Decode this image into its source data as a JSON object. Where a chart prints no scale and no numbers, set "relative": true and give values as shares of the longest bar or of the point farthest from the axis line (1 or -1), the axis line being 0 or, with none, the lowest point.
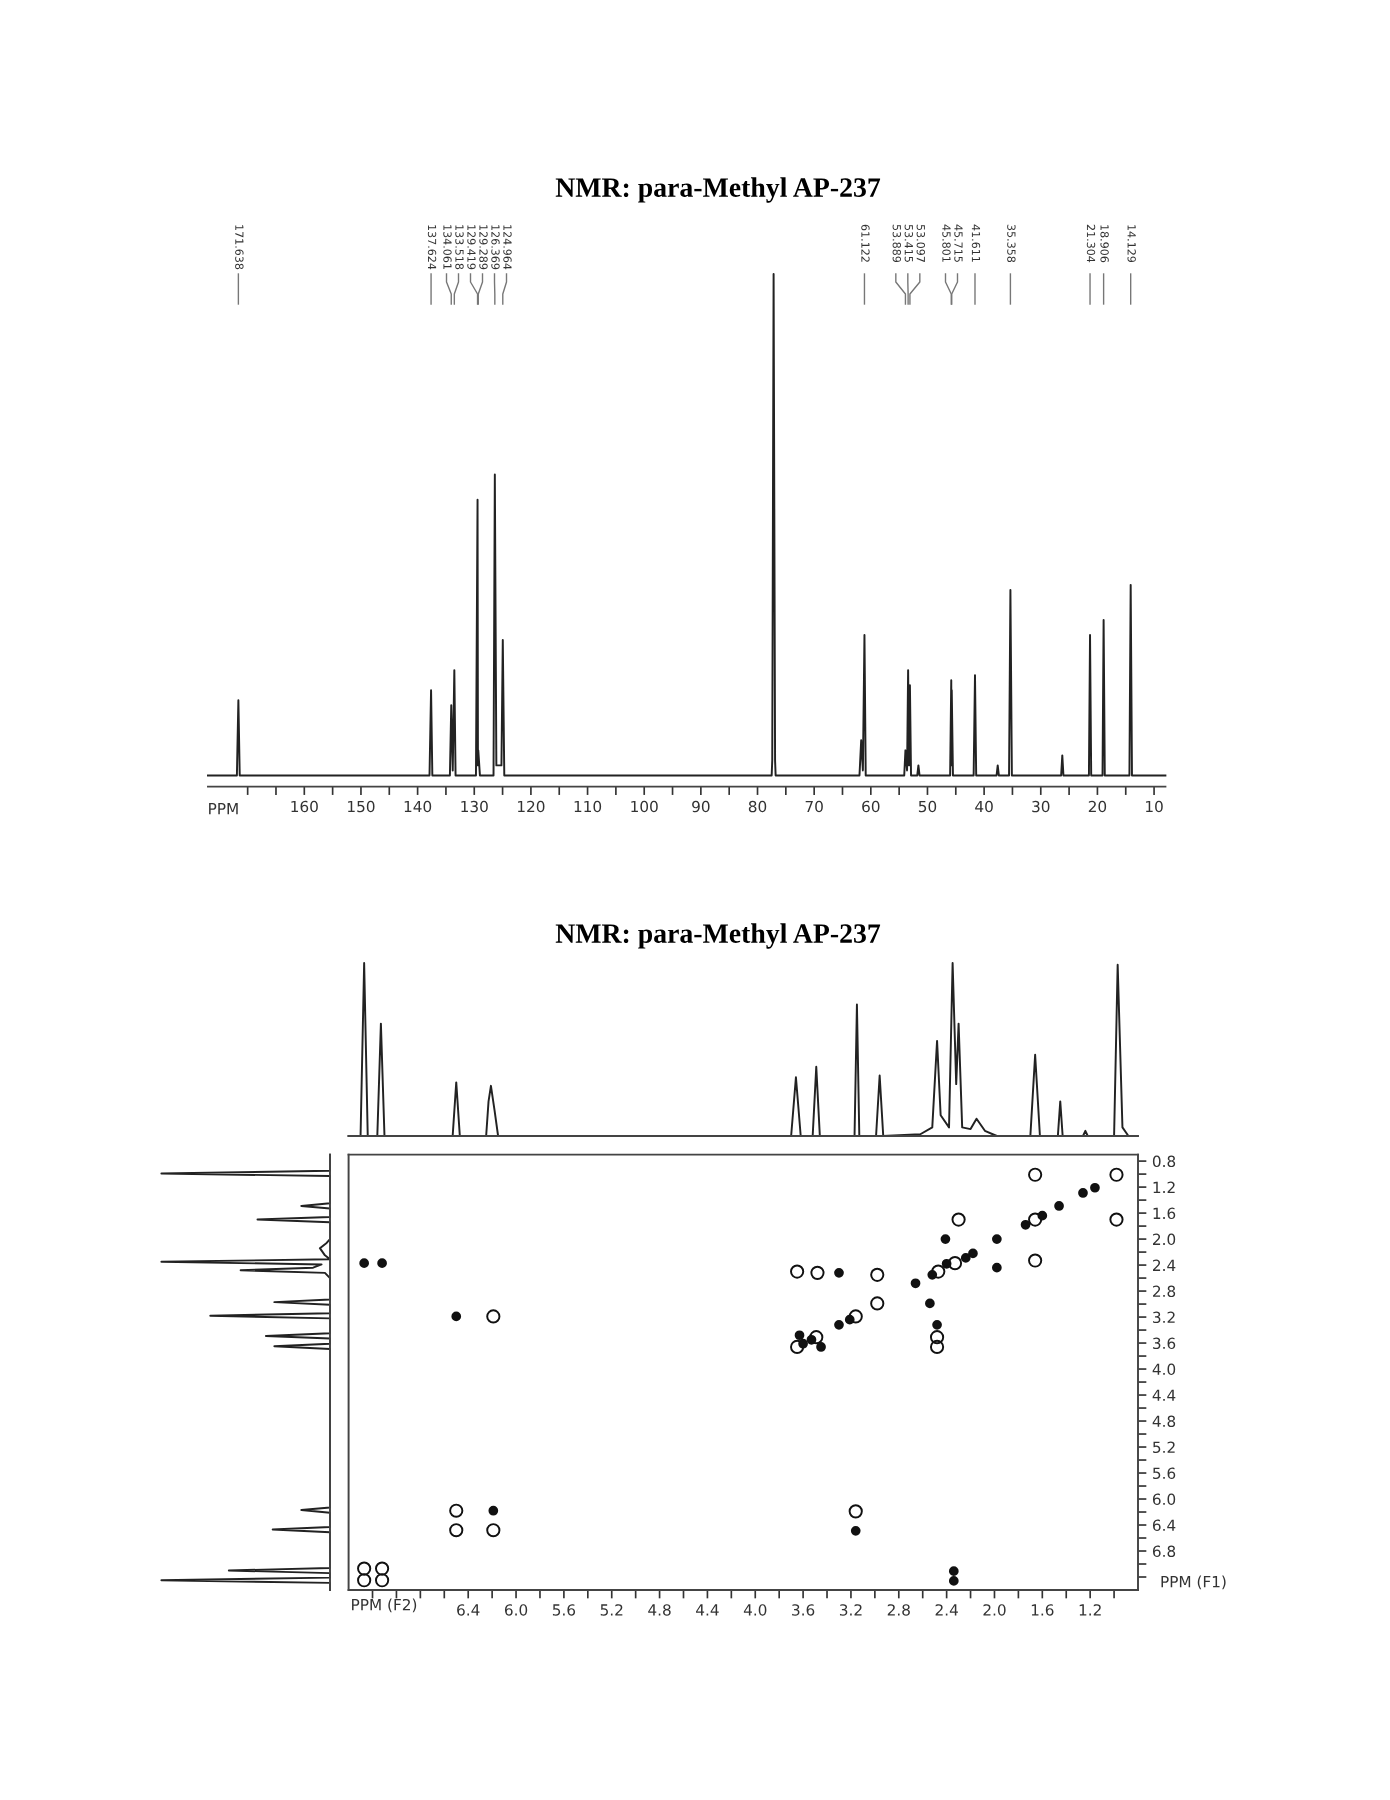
{
  "chart_data": [
    {
      "type": "line",
      "title": "NMR: para-Methyl AP-237",
      "xlabel": "PPM",
      "relative": true,
      "color": "#222222",
      "x": [
        177,
        171.9,
        171.638,
        171.4,
        137.9,
        137.624,
        137.4,
        134.3,
        134.061,
        133.8,
        133.518,
        133.3,
        129.7,
        129.419,
        129.35,
        129.289,
        129.0,
        126.6,
        126.369,
        126.1,
        125.2,
        124.964,
        124.7,
        77.5,
        77.4,
        77.16,
        76.9,
        76.8,
        62.0,
        61.7,
        61.4,
        61.122,
        60.9,
        54.1,
        53.889,
        53.6,
        53.415,
        53.25,
        53.097,
        52.9,
        51.8,
        51.6,
        51.4,
        46.0,
        45.801,
        45.75,
        45.715,
        45.5,
        41.85,
        41.611,
        41.4,
        37.8,
        37.6,
        37.4,
        35.6,
        35.358,
        35.1,
        26.4,
        26.2,
        26.0,
        21.5,
        21.304,
        21.1,
        19.1,
        18.906,
        18.7,
        14.35,
        14.129,
        13.9,
        8
      ],
      "values": [
        0,
        0,
        0.15,
        0,
        0,
        0.17,
        0,
        0,
        0.14,
        0.01,
        0.21,
        0,
        0,
        0.55,
        0.02,
        0.05,
        0,
        0,
        0.6,
        0.02,
        0.02,
        0.27,
        0,
        0,
        0.03,
        1.0,
        0.03,
        0,
        0,
        0.07,
        0.01,
        0.28,
        0,
        0,
        0.05,
        0.01,
        0.21,
        0.02,
        0.18,
        0,
        0,
        0.02,
        0,
        0,
        0.19,
        0.02,
        0.17,
        0,
        0,
        0.2,
        0,
        0,
        0.02,
        0,
        0,
        0.37,
        0,
        0,
        0.04,
        0,
        0,
        0.28,
        0,
        0,
        0.31,
        0,
        0,
        0.38,
        0,
        0
      ],
      "xlim": [
        177,
        8
      ],
      "xticks": [
        {
          "value": 170,
          "label": null
        },
        {
          "value": 165,
          "label": null
        },
        160,
        {
          "value": 155,
          "label": null
        },
        150,
        {
          "value": 145,
          "label": null
        },
        140,
        {
          "value": 135,
          "label": null
        },
        130,
        {
          "value": 125,
          "label": null
        },
        120,
        {
          "value": 115,
          "label": null
        },
        110,
        {
          "value": 105,
          "label": null
        },
        100,
        {
          "value": 95,
          "label": null
        },
        90,
        {
          "value": 85,
          "label": null
        },
        80,
        {
          "value": 75,
          "label": null
        },
        70,
        {
          "value": 65,
          "label": null
        },
        60,
        {
          "value": 55,
          "label": null
        },
        50,
        {
          "value": 45,
          "label": null
        },
        40,
        {
          "value": 35,
          "label": null
        },
        30,
        {
          "value": 25,
          "label": null
        },
        20,
        {
          "value": 15,
          "label": null
        },
        10
      ],
      "annotations": [
        {
          "text": "171.638",
          "x": 171.638
        },
        {
          "text": "137.624",
          "x": 137.624
        },
        {
          "text": "134.061",
          "x": 134.061
        },
        {
          "text": "133.518",
          "x": 133.518
        },
        {
          "text": "129.419",
          "x": 129.419
        },
        {
          "text": "129.289",
          "x": 129.289
        },
        {
          "text": "126.369",
          "x": 126.369
        },
        {
          "text": "124.964",
          "x": 124.964
        },
        {
          "text": "61.122",
          "x": 61.122
        },
        {
          "text": "53.889",
          "x": 53.889
        },
        {
          "text": "53.415",
          "x": 53.415
        },
        {
          "text": "53.097",
          "x": 53.097
        },
        {
          "text": "45.801",
          "x": 45.801
        },
        {
          "text": "45.715",
          "x": 45.715
        },
        {
          "text": "41.611",
          "x": 41.611
        },
        {
          "text": "35.358",
          "x": 35.358
        },
        {
          "text": "21.304",
          "x": 21.304
        },
        {
          "text": "18.906",
          "x": 18.906
        },
        {
          "text": "14.129",
          "x": 14.129
        }
      ]
    },
    {
      "type": "line",
      "title": "NMR: para-Methyl AP-237",
      "relative": true,
      "color": "#222222",
      "tick_labels": false,
      "xlim": [
        7.4,
        0.8
      ],
      "x": [
        7.4,
        7.3,
        7.27,
        7.24,
        7.16,
        7.13,
        7.1,
        6.53,
        6.5,
        6.47,
        6.25,
        6.23,
        6.21,
        6.18,
        6.15,
        3.7,
        3.66,
        3.62,
        3.52,
        3.49,
        3.46,
        3.17,
        3.15,
        3.13,
        2.99,
        2.96,
        2.93,
        2.62,
        2.52,
        2.48,
        2.45,
        2.38,
        2.35,
        2.32,
        2.3,
        2.27,
        2.2,
        2.15,
        2.08,
        1.98,
        1.7,
        1.66,
        1.62,
        1.47,
        1.45,
        1.43,
        1.26,
        1.24,
        1.22,
        1.0,
        0.97,
        0.93,
        0.88,
        0.82
      ],
      "values": [
        0,
        0,
        1.0,
        0,
        0,
        0.65,
        0,
        0,
        0.31,
        0,
        0,
        0.2,
        0.29,
        0.15,
        0,
        0,
        0.34,
        0,
        0,
        0.4,
        0,
        0,
        0.76,
        0,
        0,
        0.35,
        0,
        0.01,
        0.05,
        0.55,
        0.12,
        0.05,
        1.0,
        0.3,
        0.65,
        0.05,
        0.04,
        0.1,
        0.03,
        0,
        0,
        0.47,
        0,
        0,
        0.2,
        0,
        0,
        0.03,
        0,
        0,
        0.99,
        0.05,
        0,
        0
      ]
    },
    {
      "type": "line",
      "orientation": "horizontal",
      "relative": true,
      "color": "#222222",
      "tick_labels": false,
      "ylim": [
        7.4,
        0.7
      ],
      "x": [
        0.7,
        0.95,
        0.99,
        1.03,
        1.45,
        1.49,
        1.53,
        1.66,
        1.7,
        1.74,
        2.0,
        2.06,
        2.14,
        2.25,
        2.31,
        2.35,
        2.39,
        2.44,
        2.48,
        2.52,
        2.6,
        2.93,
        2.97,
        3.01,
        3.14,
        3.18,
        3.22,
        3.45,
        3.49,
        3.53,
        3.61,
        3.65,
        3.69,
        6.13,
        6.17,
        6.21,
        6.43,
        6.47,
        6.51,
        7.06,
        7.1,
        7.14,
        7.21,
        7.25,
        7.29,
        7.4
      ],
      "values": [
        0,
        0,
        -1.0,
        0,
        0,
        -0.17,
        0,
        0,
        -0.43,
        0,
        0,
        -0.02,
        -0.06,
        -0.03,
        0,
        -1.0,
        -0.05,
        -0.1,
        -0.53,
        -0.03,
        0,
        0,
        -0.33,
        0,
        0,
        -0.71,
        0,
        0,
        -0.38,
        0,
        0,
        -0.33,
        0,
        0,
        -0.17,
        0,
        0,
        -0.34,
        0,
        0,
        -0.6,
        0,
        0,
        -1.0,
        0,
        0
      ]
    },
    {
      "type": "scatter",
      "xlabel": "PPM (F2)",
      "ylabel": "PPM (F1)",
      "marker": "circle",
      "xlim": [
        7.4,
        0.8
      ],
      "ylim": [
        7.4,
        0.7
      ],
      "xticks": [
        {
          "value": 7.2,
          "label": null
        },
        {
          "value": 7.0,
          "label": null
        },
        {
          "value": 6.8,
          "label": null
        },
        {
          "value": 6.6,
          "label": null
        },
        6.4,
        {
          "value": 6.2,
          "label": null
        },
        {
          "value": 6.0,
          "label": "6.0"
        },
        {
          "value": 5.8,
          "label": null
        },
        5.6,
        {
          "value": 5.4,
          "label": null
        },
        5.2,
        {
          "value": 5.0,
          "label": null
        },
        4.8,
        {
          "value": 4.6,
          "label": null
        },
        4.4,
        {
          "value": 4.2,
          "label": null
        },
        {
          "value": 4.0,
          "label": "4.0"
        },
        {
          "value": 3.8,
          "label": null
        },
        3.6,
        {
          "value": 3.4,
          "label": null
        },
        3.2,
        {
          "value": 3.0,
          "label": null
        },
        2.8,
        {
          "value": 2.6,
          "label": null
        },
        2.4,
        {
          "value": 2.2,
          "label": null
        },
        {
          "value": 2.0,
          "label": "2.0"
        },
        {
          "value": 1.8,
          "label": null
        },
        1.6,
        {
          "value": 1.4,
          "label": null
        },
        1.2,
        {
          "value": 1.0,
          "label": null
        }
      ],
      "yticks": [
        0.8,
        {
          "value": 1.0,
          "label": null
        },
        1.2,
        {
          "value": 1.4,
          "label": null
        },
        1.6,
        {
          "value": 1.8,
          "label": null
        },
        {
          "value": 2.0,
          "label": "2.0"
        },
        {
          "value": 2.2,
          "label": null
        },
        2.4,
        {
          "value": 2.6,
          "label": null
        },
        2.8,
        {
          "value": 3.0,
          "label": null
        },
        3.2,
        {
          "value": 3.4,
          "label": null
        },
        3.6,
        {
          "value": 3.8,
          "label": null
        },
        {
          "value": 4.0,
          "label": "4.0"
        },
        {
          "value": 4.2,
          "label": null
        },
        4.4,
        {
          "value": 4.6,
          "label": null
        },
        4.8,
        {
          "value": 5.0,
          "label": null
        },
        5.2,
        {
          "value": 5.4,
          "label": null
        },
        5.6,
        {
          "value": 5.8,
          "label": null
        },
        {
          "value": 6.0,
          "label": "6.0"
        },
        {
          "value": 6.2,
          "label": null
        },
        6.4,
        {
          "value": 6.6,
          "label": null
        },
        6.8,
        {
          "value": 7.0,
          "label": null
        },
        {
          "value": 7.2,
          "label": null
        }
      ],
      "series": [
        {
          "color": "#111111",
          "x": [
            1.66,
            0.98,
            1.66,
            0.98,
            2.3,
            1.66,
            2.47,
            2.33,
            3.65,
            3.48,
            2.98,
            2.98,
            3.16,
            3.49,
            3.65,
            2.48,
            2.48,
            3.16,
            6.19,
            6.5,
            6.5,
            6.19,
            7.27,
            7.27,
            7.12,
            7.12
          ],
          "values": [
            1.01,
            1.01,
            1.7,
            1.7,
            1.7,
            2.33,
            2.5,
            2.37,
            2.5,
            2.52,
            2.55,
            2.99,
            3.19,
            3.51,
            3.66,
            3.51,
            3.66,
            6.19,
            3.19,
            6.18,
            6.48,
            6.48,
            7.07,
            7.25,
            7.07,
            7.25
          ]
        },
        {
          "color": "#111111",
          "x": [
            1.46,
            1.26,
            1.16,
            1.74,
            1.6,
            2.41,
            1.98,
            1.98,
            2.4,
            2.24,
            2.18,
            2.52,
            3.3,
            2.66,
            2.54,
            3.21,
            3.3,
            2.48,
            3.53,
            3.63,
            3.45,
            3.6,
            3.16,
            2.34,
            2.34,
            7.27,
            7.12,
            6.5,
            6.19
          ],
          "values": [
            1.49,
            1.29,
            1.21,
            1.78,
            1.64,
            2.0,
            2.0,
            2.44,
            2.38,
            2.29,
            2.22,
            2.55,
            2.52,
            2.68,
            2.99,
            3.24,
            3.32,
            3.32,
            3.55,
            3.48,
            3.66,
            3.61,
            6.49,
            7.11,
            7.26,
            2.37,
            2.37,
            3.19,
            6.18
          ]
        }
      ]
    }
  ]
}
